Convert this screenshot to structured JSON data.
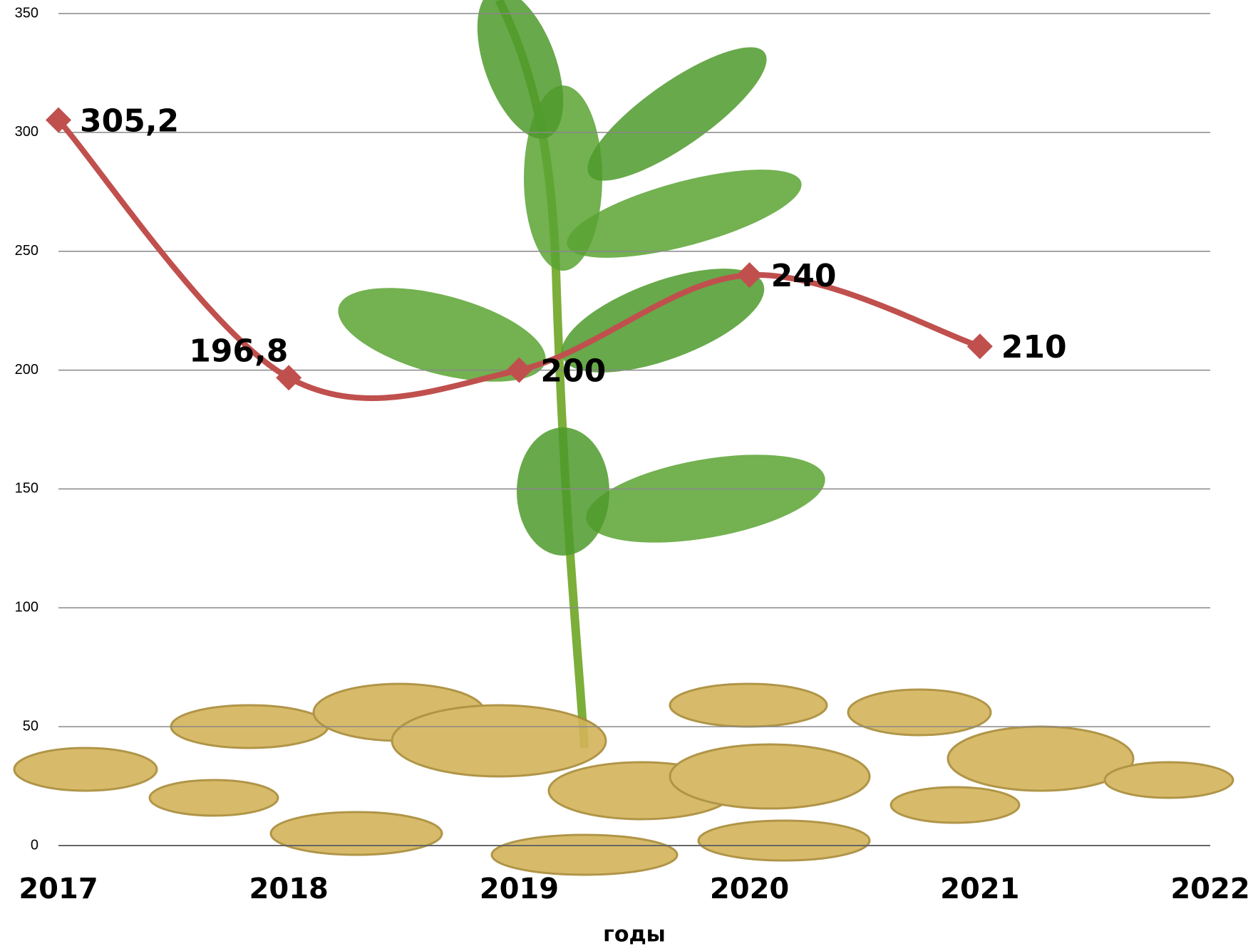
{
  "chart_data": {
    "type": "line",
    "x_label": "годы",
    "categories": [
      "2017",
      "2018",
      "2019",
      "2020",
      "2021",
      "2022"
    ],
    "values": [
      305.2,
      196.8,
      200,
      240,
      210,
      null
    ],
    "value_labels": [
      "305,2",
      "196,8",
      "200",
      "240",
      "210",
      null
    ],
    "color": "#c0504d",
    "ylim": [
      0,
      350
    ],
    "yticks": [
      0,
      50,
      100,
      150,
      200,
      250,
      300,
      350
    ],
    "grid": true
  }
}
